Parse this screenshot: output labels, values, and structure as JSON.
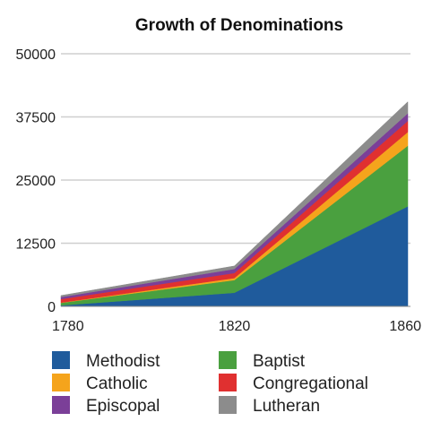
{
  "chart_data": {
    "type": "area",
    "stacked": true,
    "title": "Growth of Denominations",
    "xlabel": "",
    "ylabel": "",
    "x": [
      "1780",
      "1820",
      "1860"
    ],
    "ylim": [
      0,
      50000
    ],
    "yticks": [
      "0",
      "12500",
      "25000",
      "37500",
      "50000"
    ],
    "grid": true,
    "legend_position": "bottom",
    "series": [
      {
        "name": "Methodist",
        "color": "#1f5b9c",
        "values": [
          200,
          2700,
          19800
        ]
      },
      {
        "name": "Baptist",
        "color": "#4aa03f",
        "values": [
          500,
          2500,
          12000
        ]
      },
      {
        "name": "Catholic",
        "color": "#f5a41c",
        "values": [
          50,
          400,
          2700
        ]
      },
      {
        "name": "Congregational",
        "color": "#e03030",
        "values": [
          700,
          1000,
          2200
        ]
      },
      {
        "name": "Episcopal",
        "color": "#7b3f98",
        "values": [
          400,
          800,
          1500
        ]
      },
      {
        "name": "Lutheran",
        "color": "#8c8c8c",
        "values": [
          300,
          600,
          2300
        ]
      }
    ],
    "legend_order": [
      "Methodist",
      "Baptist",
      "Catholic",
      "Congregational",
      "Episcopal",
      "Lutheran"
    ]
  }
}
